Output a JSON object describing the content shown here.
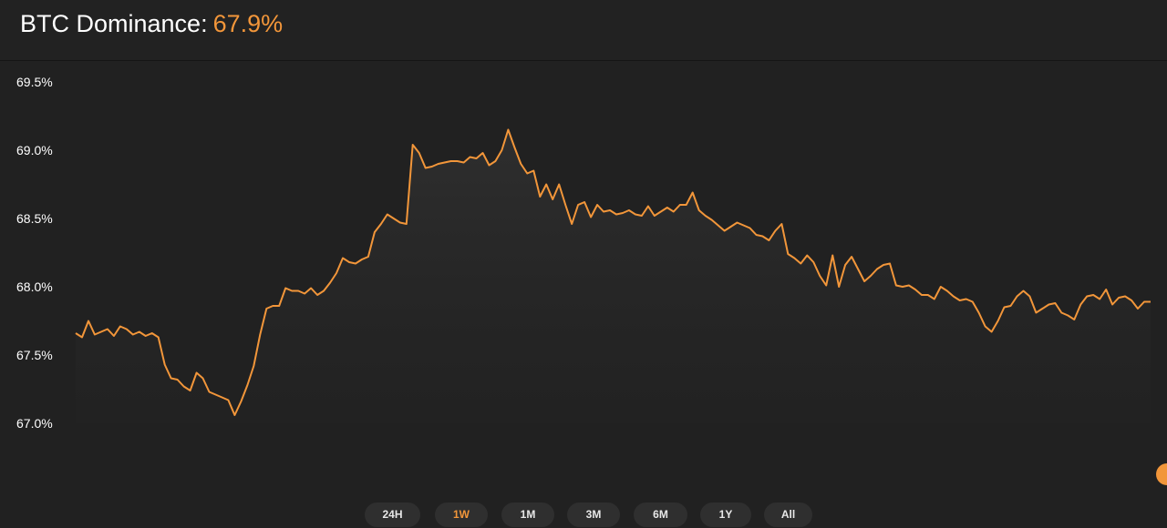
{
  "header": {
    "title_label": "BTC Dominance:",
    "title_value": "67.9%"
  },
  "range_selector": {
    "active": "1W",
    "options": [
      "24H",
      "1W",
      "1M",
      "3M",
      "6M",
      "1Y",
      "All"
    ]
  },
  "colors": {
    "accent": "#f2963a",
    "background": "#212121",
    "range_button_bg": "#2f2f2f"
  },
  "chart_data": {
    "type": "area",
    "title": "BTC Dominance",
    "ylim": [
      67.0,
      69.5
    ],
    "y_ticks": [
      "69.5%",
      "69.0%",
      "68.5%",
      "68.0%",
      "67.5%",
      "67.0%"
    ],
    "grid": false,
    "series": [
      {
        "values": [
          67.66,
          67.63,
          67.75,
          67.65,
          67.67,
          67.69,
          67.64,
          67.71,
          67.69,
          67.65,
          67.67,
          67.64,
          67.66,
          67.63,
          67.43,
          67.33,
          67.32,
          67.27,
          67.24,
          67.37,
          67.33,
          67.23,
          67.21,
          67.19,
          67.17,
          67.06,
          67.16,
          67.28,
          67.42,
          67.65,
          67.84,
          67.86,
          67.86,
          67.99,
          67.97,
          67.97,
          67.95,
          67.99,
          67.94,
          67.97,
          68.03,
          68.1,
          68.21,
          68.18,
          68.17,
          68.2,
          68.22,
          68.4,
          68.46,
          68.53,
          68.5,
          68.47,
          68.46,
          69.04,
          68.98,
          68.87,
          68.88,
          68.9,
          68.91,
          68.92,
          68.92,
          68.91,
          68.95,
          68.94,
          68.98,
          68.89,
          68.92,
          69.0,
          69.15,
          69.02,
          68.9,
          68.83,
          68.85,
          68.66,
          68.75,
          68.64,
          68.75,
          68.6,
          68.46,
          68.6,
          68.62,
          68.51,
          68.6,
          68.55,
          68.56,
          68.53,
          68.54,
          68.56,
          68.53,
          68.52,
          68.59,
          68.52,
          68.55,
          68.58,
          68.55,
          68.6,
          68.6,
          68.69,
          68.56,
          68.52,
          68.49,
          68.45,
          68.41,
          68.44,
          68.47,
          68.45,
          68.43,
          68.38,
          68.37,
          68.34,
          68.41,
          68.46,
          68.24,
          68.21,
          68.17,
          68.23,
          68.18,
          68.08,
          68.01,
          68.23,
          68.0,
          68.16,
          68.22,
          68.13,
          68.04,
          68.08,
          68.13,
          68.16,
          68.17,
          68.01,
          68.0,
          68.01,
          67.98,
          67.94,
          67.94,
          67.91,
          68.0,
          67.97,
          67.93,
          67.9,
          67.91,
          67.89,
          67.81,
          67.71,
          67.67,
          67.75,
          67.85,
          67.86,
          67.93,
          67.97,
          67.93,
          67.81,
          67.84,
          67.87,
          67.88,
          67.81,
          67.79,
          67.76,
          67.87,
          67.93,
          67.94,
          67.91,
          67.98,
          67.87,
          67.92,
          67.93,
          67.9,
          67.84,
          67.89,
          67.89
        ]
      }
    ]
  }
}
